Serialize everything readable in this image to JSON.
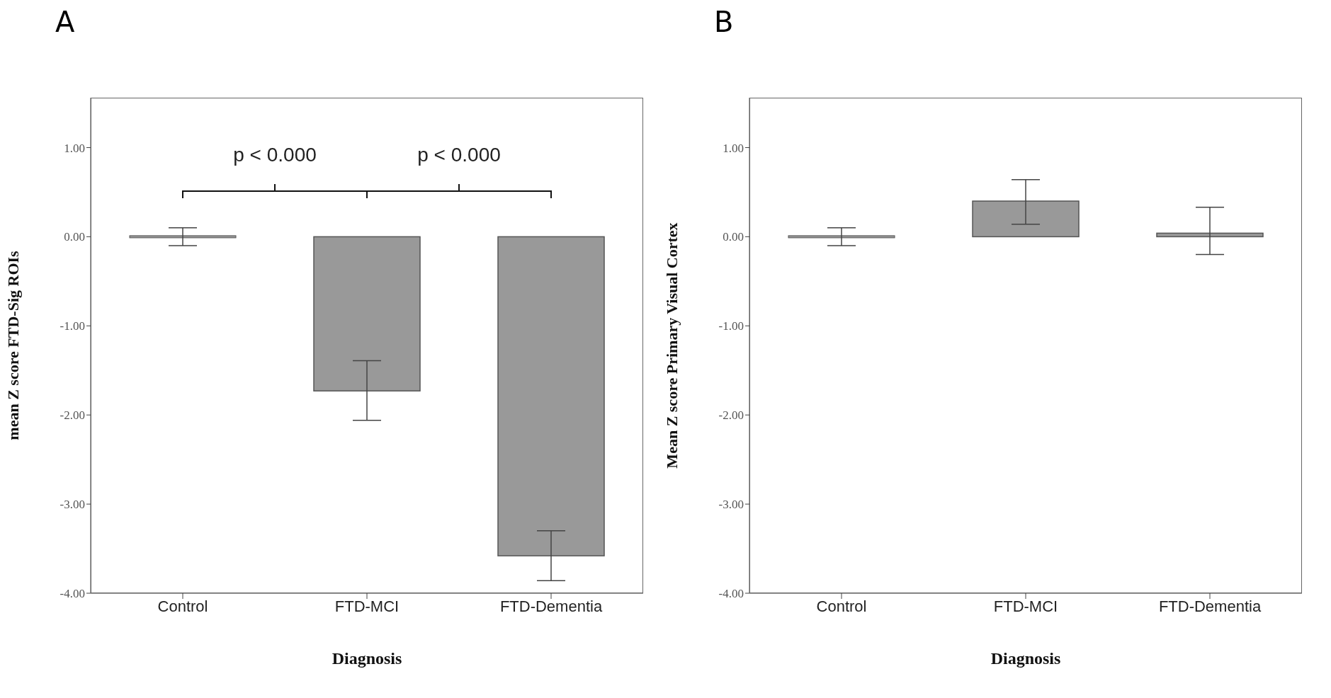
{
  "chart_data": [
    {
      "type": "bar",
      "title": "A",
      "xlabel": "Diagnosis",
      "ylabel": "mean Z score FTD-Sig ROIs",
      "categories": [
        "Control",
        "FTD-MCI",
        "FTD-Dementia"
      ],
      "values": [
        0,
        -1.73,
        -3.58
      ],
      "errors": [
        [
          -0.1,
          0.1
        ],
        [
          -2.06,
          -1.39
        ],
        [
          -3.86,
          -3.3
        ]
      ],
      "color": "#999999",
      "ylim": [
        -4,
        1.56
      ],
      "yticks": [
        {
          "value": -4,
          "label": "-4.00"
        },
        {
          "value": -3,
          "label": "-3.00"
        },
        {
          "value": -2,
          "label": "-2.00"
        },
        {
          "value": -1,
          "label": "-1.00"
        },
        {
          "value": 0,
          "label": "0.00"
        },
        {
          "value": 1,
          "label": "1.00"
        }
      ],
      "annotations": [
        "p < 0.000",
        "p < 0.000"
      ]
    },
    {
      "type": "bar",
      "title": "B",
      "xlabel": "Diagnosis",
      "ylabel": "Mean Z score Primary Visual Cortex",
      "categories": [
        "Control",
        "FTD-MCI",
        "FTD-Dementia"
      ],
      "values": [
        0,
        0.4,
        0.04
      ],
      "errors": [
        [
          -0.1,
          0.1
        ],
        [
          0.14,
          0.64
        ],
        [
          -0.2,
          0.33
        ]
      ],
      "color": "#999999",
      "ylim": [
        -4,
        1.56
      ],
      "yticks": [
        {
          "value": -4,
          "label": "-4.00"
        },
        {
          "value": -3,
          "label": "-3.00"
        },
        {
          "value": -2,
          "label": "-2.00"
        },
        {
          "value": -1,
          "label": "-1.00"
        },
        {
          "value": 0,
          "label": "0.00"
        },
        {
          "value": 1,
          "label": "1.00"
        }
      ]
    }
  ]
}
